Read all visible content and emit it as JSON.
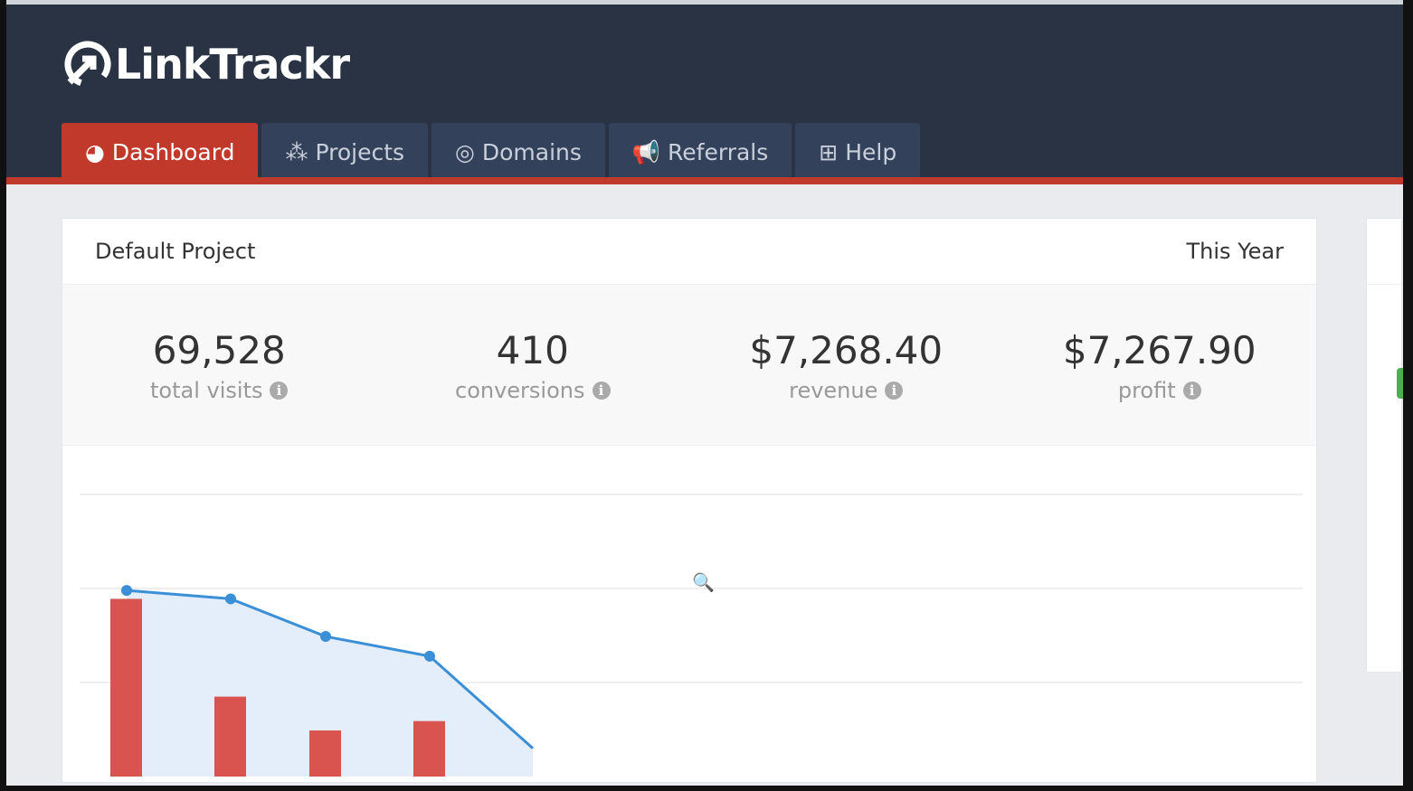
{
  "app": {
    "name": "LinkTrackr"
  },
  "nav": {
    "tabs": [
      {
        "label": "Dashboard",
        "icon": "dashboard-gauge-icon",
        "active": true
      },
      {
        "label": "Projects",
        "icon": "cubes-icon"
      },
      {
        "label": "Domains",
        "icon": "compass-icon"
      },
      {
        "label": "Referrals",
        "icon": "bullhorn-icon"
      },
      {
        "label": "Help",
        "icon": "medkit-icon"
      }
    ]
  },
  "project": {
    "title": "Default Project",
    "period": "This Year"
  },
  "stats": [
    {
      "value": "69,528",
      "label": "total visits"
    },
    {
      "value": "410",
      "label": "conversions"
    },
    {
      "value": "$7,268.40",
      "label": "revenue"
    },
    {
      "value": "$7,267.90",
      "label": "profit"
    }
  ],
  "colors": {
    "header": "#293344",
    "accent": "#c0392b",
    "line": "#3a8fd6",
    "bar": "#d9534f",
    "area": "#e3eefa"
  },
  "chart_data": {
    "type": "bar+area-line",
    "grid": true,
    "line": {
      "values": [
        1.98,
        1.89,
        1.49,
        1.28,
        0.3
      ]
    },
    "bars": {
      "values": [
        1.89,
        0.85,
        0.49,
        0.59
      ]
    }
  }
}
